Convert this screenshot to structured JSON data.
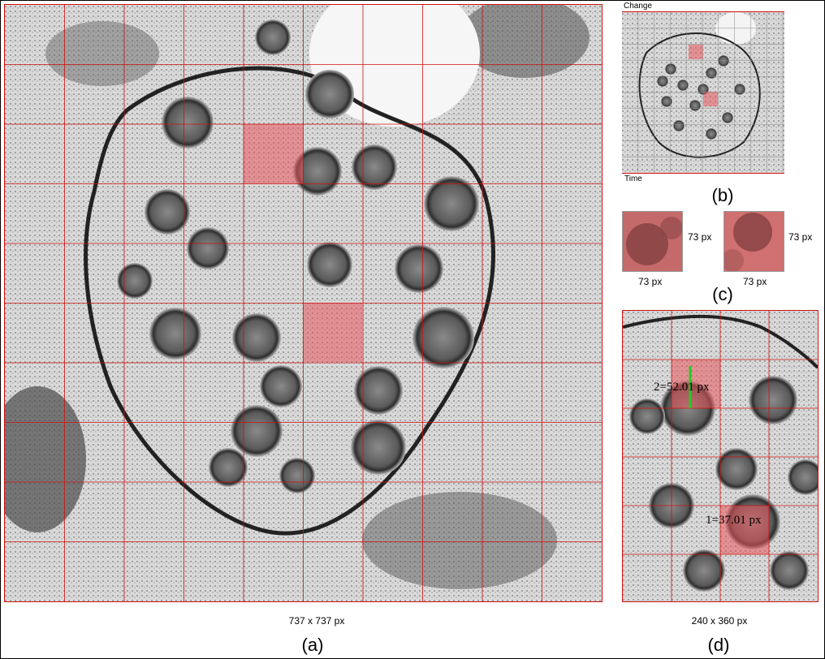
{
  "panels": {
    "a": {
      "caption": "(a)",
      "size_label": "737 x 737 px"
    },
    "b": {
      "caption": "(b)",
      "top_label": "Change",
      "bottom_label": "Time"
    },
    "c": {
      "caption": "(c)",
      "tiles": [
        {
          "width_label": "73 px",
          "height_label": "73 px"
        },
        {
          "width_label": "73 px",
          "height_label": "73 px"
        }
      ]
    },
    "d": {
      "caption": "(d)",
      "size_label": "240 x 360 px",
      "measurements": [
        {
          "label": "2=52.01 px"
        },
        {
          "label": "1=37.01 px"
        }
      ]
    }
  },
  "colors": {
    "grid_line": "#d01010",
    "highlight": "#e8555a",
    "measure_line": "#22cc22"
  }
}
